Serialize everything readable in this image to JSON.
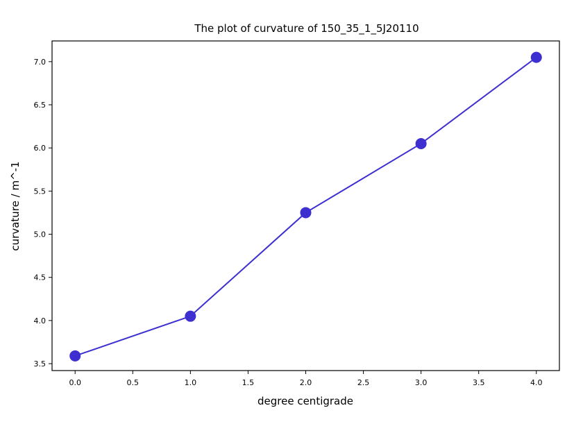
{
  "chart_data": {
    "type": "line",
    "title": "The plot of curvature of 150_35_1_5J20110",
    "xlabel": "degree centigrade",
    "ylabel": "curvature / m^-1",
    "xlim": [
      -0.2,
      4.2
    ],
    "ylim": [
      3.42,
      7.24
    ],
    "xticks": [
      "0.0",
      "0.5",
      "1.0",
      "1.5",
      "2.0",
      "2.5",
      "3.0",
      "3.5",
      "4.0"
    ],
    "yticks": [
      "3.5",
      "4.0",
      "4.5",
      "5.0",
      "5.5",
      "6.0",
      "6.5",
      "7.0"
    ],
    "grid": false,
    "series": [
      {
        "x": [
          0,
          1,
          2,
          3,
          4
        ],
        "y": [
          3.59,
          4.05,
          5.25,
          6.05,
          7.05
        ],
        "color": "#3d2fd0",
        "marker": "circle"
      }
    ]
  }
}
